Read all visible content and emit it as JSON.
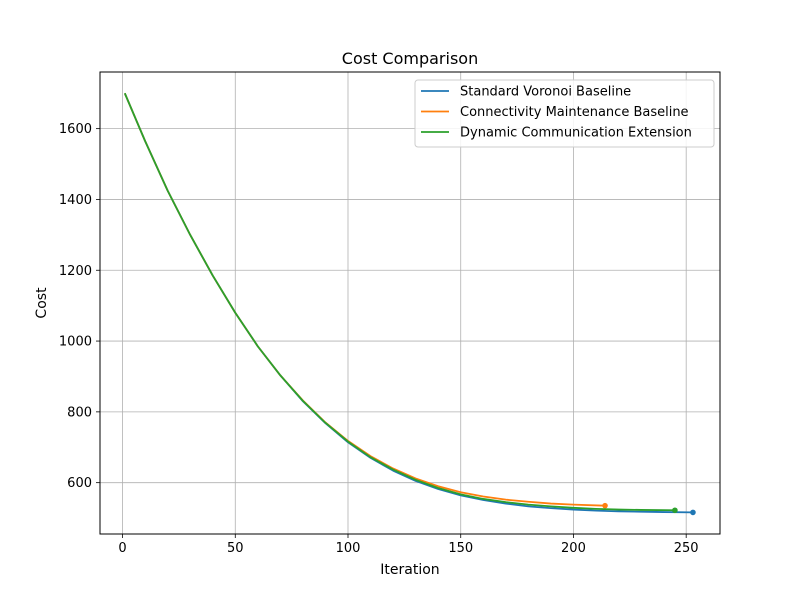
{
  "chart_data": {
    "type": "line",
    "title": "Cost Comparison",
    "xlabel": "Iteration",
    "ylabel": "Cost",
    "xlim": [
      -10,
      265
    ],
    "ylim": [
      455,
      1760
    ],
    "xticks": [
      0,
      50,
      100,
      150,
      200,
      250
    ],
    "yticks": [
      600,
      800,
      1000,
      1200,
      1400,
      1600
    ],
    "grid": true,
    "legend_position": "top-right",
    "series": [
      {
        "name": "Standard Voronoi Baseline",
        "color": "#1f77b4",
        "x": [
          1,
          10,
          20,
          30,
          40,
          50,
          60,
          70,
          80,
          90,
          100,
          110,
          120,
          130,
          140,
          150,
          160,
          170,
          180,
          190,
          200,
          210,
          220,
          230,
          240,
          253
        ],
        "y": [
          1700,
          1565,
          1425,
          1300,
          1185,
          1080,
          985,
          903,
          830,
          768,
          714,
          670,
          634,
          605,
          582,
          564,
          551,
          541,
          533,
          528,
          524,
          521,
          519,
          518,
          517,
          516
        ]
      },
      {
        "name": "Connectivity Maintenance Baseline",
        "color": "#ff7f0e",
        "x": [
          1,
          10,
          20,
          30,
          40,
          50,
          60,
          70,
          80,
          90,
          100,
          110,
          120,
          130,
          140,
          150,
          160,
          170,
          180,
          190,
          200,
          214
        ],
        "y": [
          1700,
          1565,
          1425,
          1300,
          1185,
          1080,
          985,
          903,
          832,
          770,
          718,
          675,
          640,
          612,
          590,
          573,
          561,
          552,
          546,
          541,
          538,
          535
        ]
      },
      {
        "name": "Dynamic Communication Extension",
        "color": "#2ca02c",
        "x": [
          1,
          10,
          20,
          30,
          40,
          50,
          60,
          70,
          80,
          90,
          100,
          110,
          120,
          130,
          140,
          150,
          160,
          170,
          180,
          190,
          200,
          210,
          220,
          230,
          245
        ],
        "y": [
          1700,
          1565,
          1425,
          1300,
          1185,
          1080,
          985,
          903,
          831,
          769,
          716,
          672,
          637,
          608,
          585,
          567,
          554,
          545,
          538,
          533,
          529,
          526,
          524,
          523,
          522
        ]
      }
    ]
  }
}
